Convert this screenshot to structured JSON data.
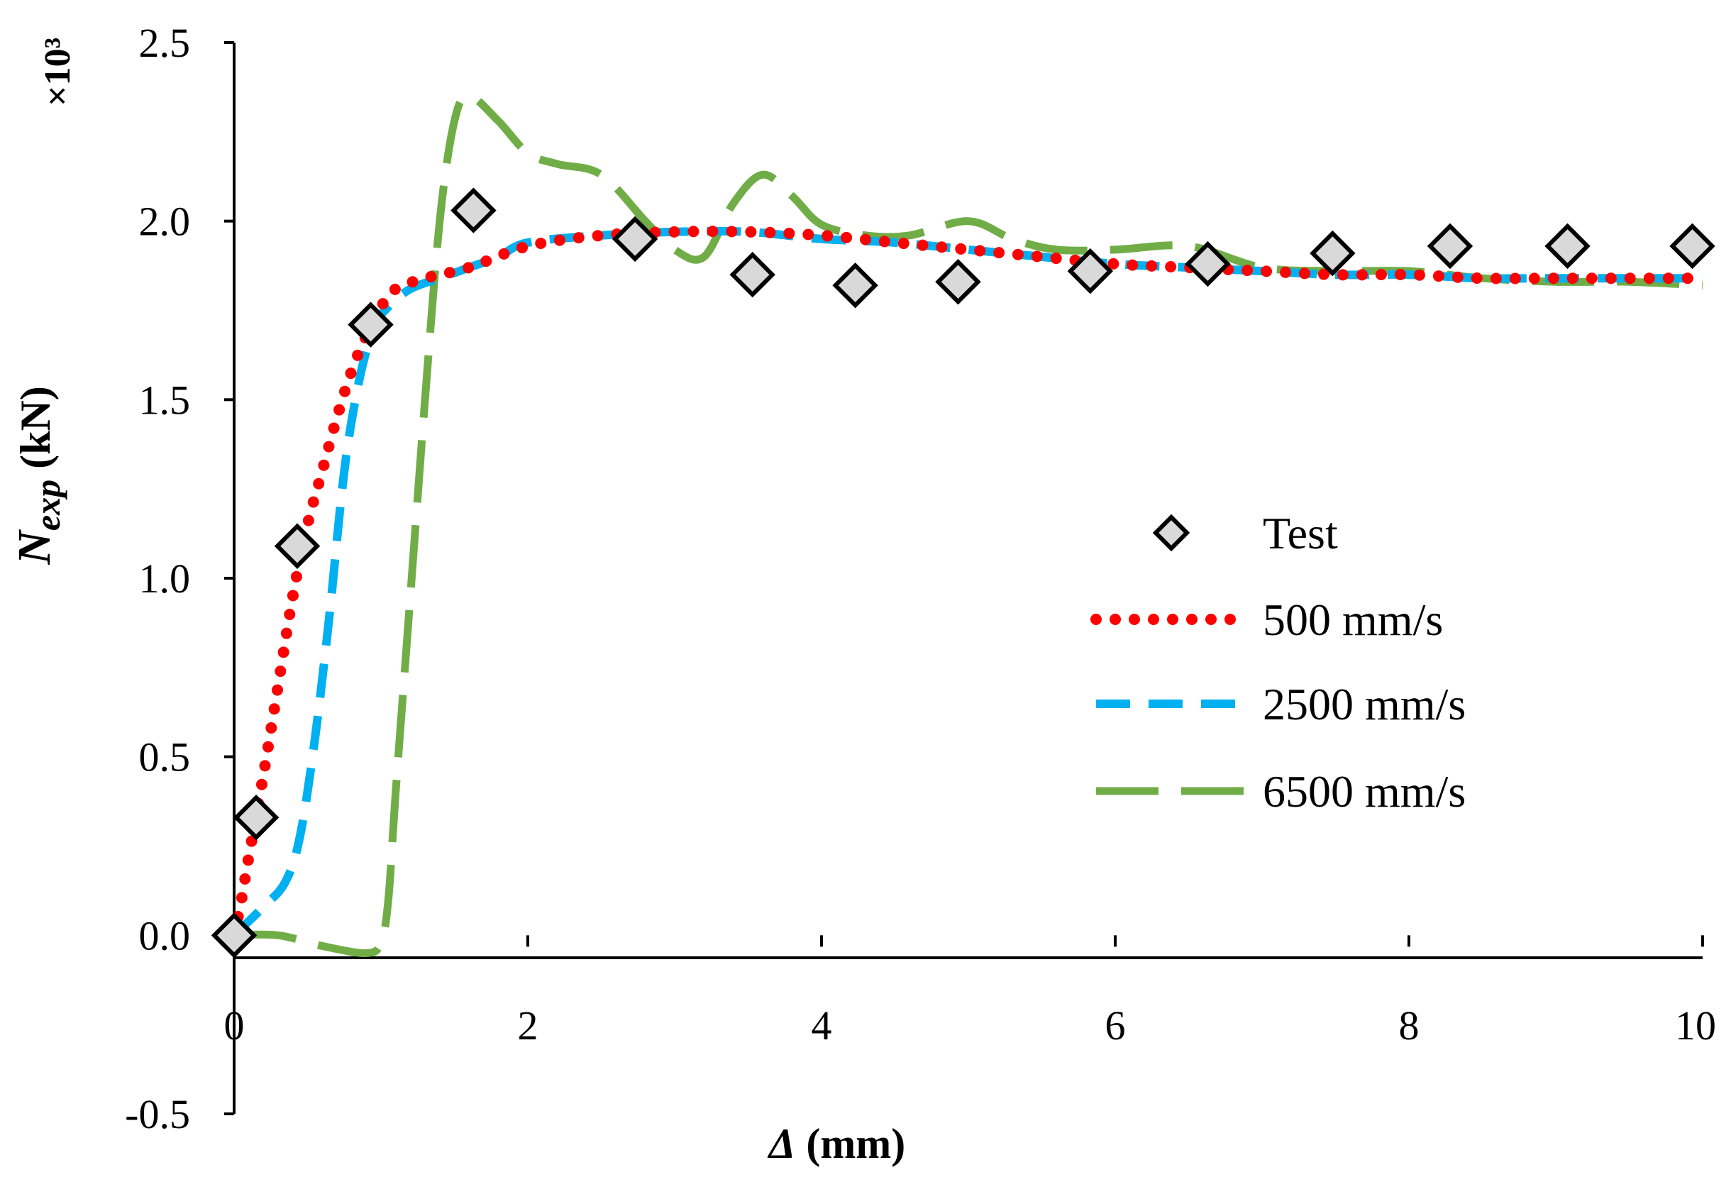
{
  "chart_data": {
    "type": "line",
    "title": "",
    "xlabel": {
      "main": "Δ",
      "rest": " (mm)"
    },
    "ylabel": {
      "main": "N",
      "sub": "exp",
      "rest": " (kN)"
    },
    "y_scale_label": "×10³",
    "xlim": [
      0,
      10
    ],
    "ylim": [
      -0.5,
      2.5
    ],
    "x_ticks": [
      0,
      2,
      4,
      6,
      8,
      10
    ],
    "x_tick_labels": [
      "0",
      "2",
      "4",
      "6",
      "8",
      "10"
    ],
    "y_ticks": [
      -0.5,
      0.0,
      0.5,
      1.0,
      1.5,
      2.0,
      2.5
    ],
    "y_tick_labels": [
      "-0.5",
      "0.0",
      "0.5",
      "1.0",
      "1.5",
      "2.0",
      "2.5"
    ],
    "grid": false,
    "legend_position": "center-right",
    "series": [
      {
        "name": "Test",
        "style": "marker-diamond",
        "color": "#d9d9d9",
        "edge_color": "#000000",
        "points": [
          [
            0.0,
            0.0
          ],
          [
            0.15,
            0.33
          ],
          [
            0.43,
            1.09
          ],
          [
            0.93,
            1.71
          ],
          [
            1.63,
            2.03
          ],
          [
            2.73,
            1.95
          ],
          [
            3.53,
            1.85
          ],
          [
            4.23,
            1.82
          ],
          [
            4.93,
            1.83
          ],
          [
            5.83,
            1.86
          ],
          [
            6.63,
            1.88
          ],
          [
            7.48,
            1.91
          ],
          [
            8.28,
            1.93
          ],
          [
            9.08,
            1.93
          ],
          [
            9.93,
            1.93
          ]
        ]
      },
      {
        "name": "500 mm/s",
        "style": "dotted",
        "color": "#ff0000",
        "points": [
          [
            0.0,
            0.0
          ],
          [
            0.05,
            0.1
          ],
          [
            0.1,
            0.22
          ],
          [
            0.2,
            0.45
          ],
          [
            0.3,
            0.7
          ],
          [
            0.4,
            0.95
          ],
          [
            0.5,
            1.15
          ],
          [
            0.6,
            1.3
          ],
          [
            0.7,
            1.45
          ],
          [
            0.8,
            1.58
          ],
          [
            0.9,
            1.68
          ],
          [
            1.0,
            1.76
          ],
          [
            1.1,
            1.81
          ],
          [
            1.3,
            1.84
          ],
          [
            1.6,
            1.87
          ],
          [
            2.0,
            1.93
          ],
          [
            2.5,
            1.96
          ],
          [
            3.0,
            1.97
          ],
          [
            3.5,
            1.97
          ],
          [
            4.0,
            1.96
          ],
          [
            4.5,
            1.94
          ],
          [
            5.0,
            1.92
          ],
          [
            5.5,
            1.9
          ],
          [
            6.0,
            1.88
          ],
          [
            6.5,
            1.87
          ],
          [
            7.0,
            1.86
          ],
          [
            7.5,
            1.85
          ],
          [
            8.0,
            1.85
          ],
          [
            8.5,
            1.84
          ],
          [
            9.0,
            1.84
          ],
          [
            9.5,
            1.84
          ],
          [
            10.0,
            1.84
          ]
        ]
      },
      {
        "name": "2500 mm/s",
        "style": "dashed",
        "color": "#00b0f0",
        "points": [
          [
            0.0,
            0.0
          ],
          [
            0.2,
            0.08
          ],
          [
            0.35,
            0.15
          ],
          [
            0.45,
            0.28
          ],
          [
            0.55,
            0.55
          ],
          [
            0.65,
            0.9
          ],
          [
            0.75,
            1.3
          ],
          [
            0.85,
            1.55
          ],
          [
            0.95,
            1.7
          ],
          [
            1.05,
            1.76
          ],
          [
            1.2,
            1.81
          ],
          [
            1.4,
            1.84
          ],
          [
            1.6,
            1.87
          ],
          [
            1.8,
            1.9
          ],
          [
            2.0,
            1.94
          ],
          [
            2.5,
            1.96
          ],
          [
            3.0,
            1.97
          ],
          [
            3.5,
            1.97
          ],
          [
            4.0,
            1.95
          ],
          [
            4.5,
            1.94
          ],
          [
            5.0,
            1.92
          ],
          [
            5.5,
            1.9
          ],
          [
            6.0,
            1.88
          ],
          [
            6.5,
            1.87
          ],
          [
            7.0,
            1.86
          ],
          [
            7.5,
            1.85
          ],
          [
            8.0,
            1.85
          ],
          [
            8.5,
            1.84
          ],
          [
            9.0,
            1.84
          ],
          [
            9.5,
            1.84
          ],
          [
            10.0,
            1.84
          ]
        ]
      },
      {
        "name": "6500 mm/s",
        "style": "long-dash",
        "color": "#70ad47",
        "points": [
          [
            0.0,
            0.0
          ],
          [
            0.3,
            0.0
          ],
          [
            0.6,
            -0.03
          ],
          [
            0.9,
            -0.05
          ],
          [
            1.0,
            -0.02
          ],
          [
            1.05,
            0.1
          ],
          [
            1.1,
            0.4
          ],
          [
            1.2,
            0.95
          ],
          [
            1.3,
            1.5
          ],
          [
            1.4,
            2.0
          ],
          [
            1.5,
            2.28
          ],
          [
            1.6,
            2.35
          ],
          [
            1.8,
            2.28
          ],
          [
            2.0,
            2.19
          ],
          [
            2.2,
            2.16
          ],
          [
            2.5,
            2.13
          ],
          [
            2.8,
            2.0
          ],
          [
            3.0,
            1.92
          ],
          [
            3.2,
            1.9
          ],
          [
            3.4,
            2.05
          ],
          [
            3.6,
            2.13
          ],
          [
            3.8,
            2.07
          ],
          [
            4.0,
            1.99
          ],
          [
            4.3,
            1.96
          ],
          [
            4.6,
            1.96
          ],
          [
            5.0,
            2.0
          ],
          [
            5.3,
            1.95
          ],
          [
            5.6,
            1.92
          ],
          [
            6.0,
            1.92
          ],
          [
            6.5,
            1.93
          ],
          [
            7.0,
            1.87
          ],
          [
            7.5,
            1.86
          ],
          [
            8.0,
            1.86
          ],
          [
            8.5,
            1.84
          ],
          [
            9.0,
            1.83
          ],
          [
            9.5,
            1.83
          ],
          [
            10.0,
            1.82
          ]
        ]
      }
    ]
  }
}
